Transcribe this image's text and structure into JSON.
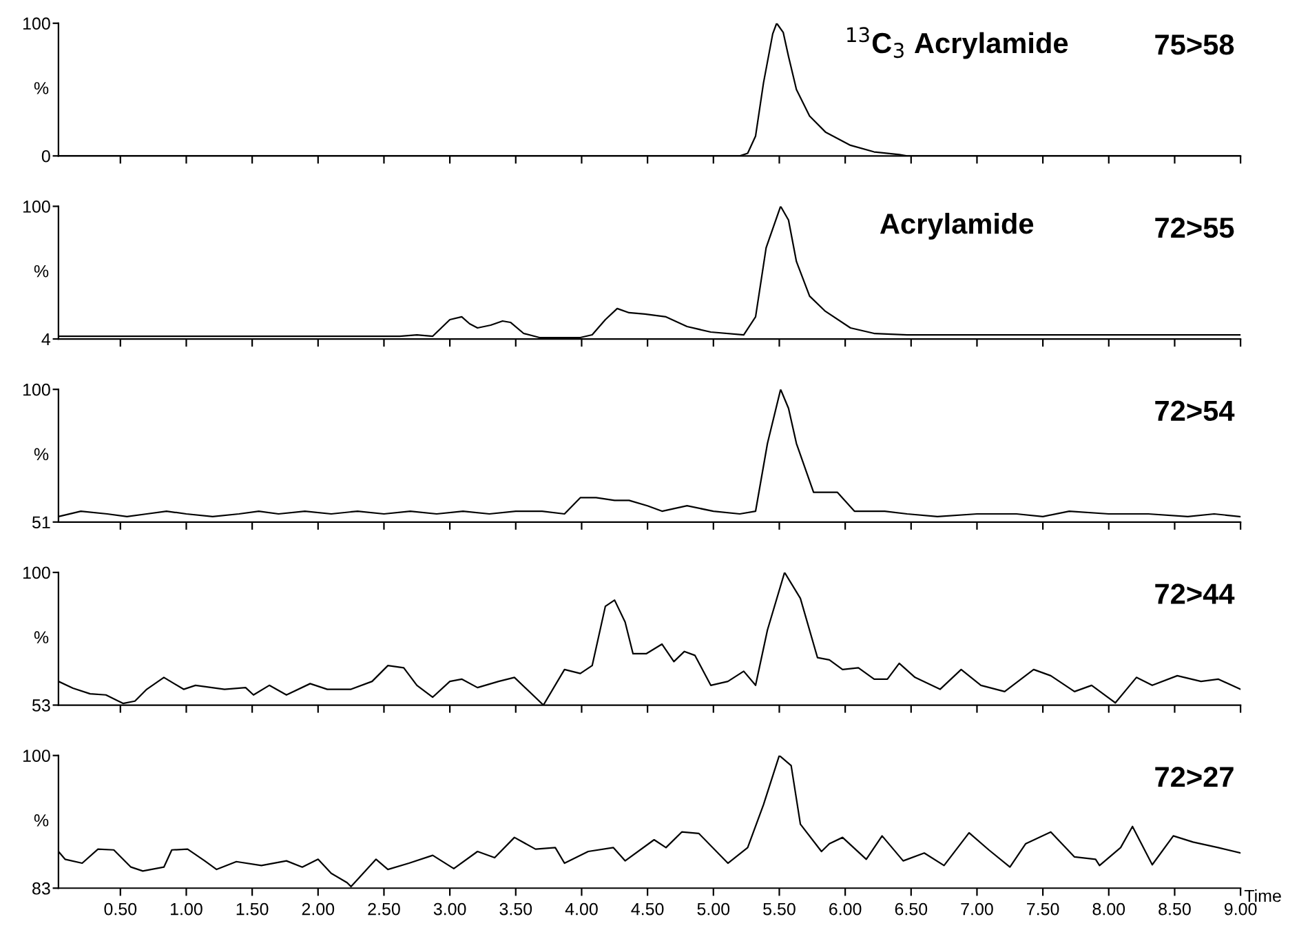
{
  "chart_data": [
    {
      "type": "line",
      "ylabel": "%",
      "annotations": [
        "$^{13}$C$_{3}$ Acrylamide",
        "75>58"
      ],
      "xlim": [
        0.03,
        9.0
      ],
      "xticks": [
        0.5,
        1.0,
        1.5,
        2.0,
        2.5,
        3.0,
        3.5,
        4.0,
        4.5,
        5.0,
        5.5,
        6.0,
        6.5,
        7.0,
        7.5,
        8.0,
        8.5,
        9.0
      ],
      "ylim": [
        0,
        100
      ],
      "yticks": [
        0,
        100
      ],
      "tick_labels": "y",
      "grid": false,
      "marker": "none",
      "line_style": "solid",
      "series": [
        {
          "color": "#000000",
          "x": [
            0.03,
            5.2,
            5.26,
            5.32,
            5.38,
            5.45,
            5.48,
            5.53,
            5.57,
            5.63,
            5.73,
            5.85,
            6.04,
            6.22,
            6.41,
            6.47,
            9.0
          ],
          "values": [
            0,
            0,
            2,
            15,
            55,
            92,
            100,
            93,
            75,
            50,
            30,
            18,
            8,
            3,
            1,
            0,
            0
          ]
        }
      ]
    },
    {
      "type": "line",
      "ylabel": "%",
      "annotations": [
        "Acrylamide",
        "72>55"
      ],
      "xlim": [
        0.03,
        9.0
      ],
      "xticks": [
        0.5,
        1.0,
        1.5,
        2.0,
        2.5,
        3.0,
        3.5,
        4.0,
        4.5,
        5.0,
        5.5,
        6.0,
        6.5,
        7.0,
        7.5,
        8.0,
        8.5,
        9.0
      ],
      "ylim": [
        4,
        100
      ],
      "yticks": [
        4,
        100
      ],
      "tick_labels": "y",
      "grid": false,
      "marker": "none",
      "line_style": "solid",
      "series": [
        {
          "color": "#000000",
          "x": [
            0.03,
            0.5,
            1.0,
            1.5,
            2.0,
            2.5,
            2.62,
            2.75,
            2.87,
            3.0,
            3.09,
            3.15,
            3.21,
            3.31,
            3.4,
            3.46,
            3.56,
            3.68,
            3.99,
            4.08,
            4.18,
            4.27,
            4.36,
            4.48,
            4.64,
            4.8,
            4.98,
            5.23,
            5.32,
            5.4,
            5.51,
            5.57,
            5.63,
            5.73,
            5.85,
            6.04,
            6.22,
            6.47,
            7.0,
            8.0,
            9.0
          ],
          "values": [
            6,
            6,
            6,
            6,
            6,
            6,
            6,
            7,
            6,
            18,
            20,
            15,
            12,
            14,
            17,
            16,
            8,
            5,
            5,
            7,
            18,
            26,
            23,
            22,
            20,
            13,
            9,
            7,
            20,
            70,
            100,
            90,
            60,
            35,
            24,
            12,
            8,
            7,
            7,
            7,
            7
          ]
        }
      ]
    },
    {
      "type": "line",
      "ylabel": "%",
      "annotations": [
        "72>54"
      ],
      "xlim": [
        0.03,
        9.0
      ],
      "xticks": [
        0.5,
        1.0,
        1.5,
        2.0,
        2.5,
        3.0,
        3.5,
        4.0,
        4.5,
        5.0,
        5.5,
        6.0,
        6.5,
        7.0,
        7.5,
        8.0,
        8.5,
        9.0
      ],
      "ylim": [
        51,
        100
      ],
      "yticks": [
        51,
        100
      ],
      "tick_labels": "y",
      "grid": false,
      "marker": "none",
      "line_style": "solid",
      "series": [
        {
          "color": "#000000",
          "x": [
            0.03,
            0.2,
            0.4,
            0.55,
            0.7,
            0.85,
            1.0,
            1.2,
            1.4,
            1.55,
            1.7,
            1.9,
            2.1,
            2.3,
            2.5,
            2.7,
            2.9,
            3.1,
            3.3,
            3.5,
            3.7,
            3.87,
            3.99,
            4.11,
            4.25,
            4.36,
            4.5,
            4.61,
            4.8,
            5.0,
            5.2,
            5.32,
            5.41,
            5.51,
            5.57,
            5.63,
            5.76,
            5.94,
            6.07,
            6.3,
            6.47,
            6.7,
            7.0,
            7.3,
            7.5,
            7.7,
            8.0,
            8.3,
            8.6,
            8.8,
            9.0
          ],
          "values": [
            53,
            55,
            54,
            53,
            54,
            55,
            54,
            53,
            54,
            55,
            54,
            55,
            54,
            55,
            54,
            55,
            54,
            55,
            54,
            55,
            55,
            54,
            60,
            60,
            59,
            59,
            57,
            55,
            57,
            55,
            54,
            55,
            80,
            100,
            93,
            80,
            62,
            62,
            55,
            55,
            54,
            53,
            54,
            54,
            53,
            55,
            54,
            54,
            53,
            54,
            53
          ]
        }
      ]
    },
    {
      "type": "line",
      "ylabel": "%",
      "annotations": [
        "72>44"
      ],
      "xlim": [
        0.03,
        9.0
      ],
      "xticks": [
        0.5,
        1.0,
        1.5,
        2.0,
        2.5,
        3.0,
        3.5,
        4.0,
        4.5,
        5.0,
        5.5,
        6.0,
        6.5,
        7.0,
        7.5,
        8.0,
        8.5,
        9.0
      ],
      "ylim": [
        53,
        100
      ],
      "yticks": [
        53,
        100
      ],
      "tick_labels": "y",
      "grid": false,
      "marker": "none",
      "line_style": "solid",
      "series": [
        {
          "color": "#000000",
          "x": [
            0.03,
            0.14,
            0.27,
            0.39,
            0.52,
            0.61,
            0.7,
            0.83,
            0.98,
            1.07,
            1.29,
            1.45,
            1.51,
            1.63,
            1.76,
            1.94,
            2.07,
            2.25,
            2.41,
            2.53,
            2.65,
            2.75,
            2.87,
            3.0,
            3.09,
            3.21,
            3.37,
            3.49,
            3.71,
            3.87,
            3.99,
            4.08,
            4.18,
            4.25,
            4.33,
            4.39,
            4.49,
            4.61,
            4.7,
            4.78,
            4.86,
            4.98,
            5.11,
            5.23,
            5.32,
            5.41,
            5.54,
            5.66,
            5.79,
            5.88,
            5.98,
            6.1,
            6.22,
            6.32,
            6.41,
            6.53,
            6.72,
            6.88,
            7.03,
            7.21,
            7.43,
            7.56,
            7.74,
            7.87,
            8.05,
            8.21,
            8.33,
            8.52,
            8.7,
            8.83,
            9.0
          ],
          "values": [
            61.4,
            59,
            57,
            56.6,
            53.6,
            54.4,
            58.6,
            62.8,
            58.6,
            60,
            58.6,
            59.2,
            56.6,
            60,
            56.6,
            60.6,
            58.6,
            58.6,
            61.4,
            67,
            66.2,
            60,
            55.8,
            61.4,
            62.2,
            59.2,
            61.4,
            62.8,
            53,
            65.6,
            64.2,
            67,
            88,
            90.2,
            82.4,
            71.2,
            71.2,
            74.6,
            68.4,
            72,
            70.6,
            60,
            61.4,
            65,
            60,
            79.6,
            100,
            90.8,
            69.8,
            69,
            65.6,
            66.2,
            62.2,
            62.2,
            67.8,
            62.8,
            58.6,
            65.6,
            60,
            57.8,
            65.6,
            63.4,
            57.8,
            60,
            53.8,
            62.8,
            60,
            63.4,
            61.4,
            62.2,
            58.6
          ]
        }
      ]
    },
    {
      "type": "line",
      "ylabel": "%",
      "xlabel": "Time",
      "annotations": [
        "72>27"
      ],
      "xlim": [
        0.03,
        9.0
      ],
      "xticks": [
        {
          "value": 0.5,
          "label": "0.50"
        },
        {
          "value": 1.0,
          "label": "1.00"
        },
        {
          "value": 1.5,
          "label": "1.50"
        },
        {
          "value": 2.0,
          "label": "2.00"
        },
        {
          "value": 2.5,
          "label": "2.50"
        },
        {
          "value": 3.0,
          "label": "3.00"
        },
        {
          "value": 3.5,
          "label": "3.50"
        },
        {
          "value": 4.0,
          "label": "4.00"
        },
        {
          "value": 4.5,
          "label": "4.50"
        },
        {
          "value": 5.0,
          "label": "5.00"
        },
        {
          "value": 5.5,
          "label": "5.50"
        },
        {
          "value": 6.0,
          "label": "6.00"
        },
        {
          "value": 6.5,
          "label": "6.50"
        },
        {
          "value": 7.0,
          "label": "7.00"
        },
        {
          "value": 7.5,
          "label": "7.50"
        },
        {
          "value": 8.0,
          "label": "8.00"
        },
        {
          "value": 8.5,
          "label": "8.50"
        },
        {
          "value": 9.0,
          "label": "9.00"
        }
      ],
      "ylim": [
        83,
        100
      ],
      "yticks": [
        83,
        100
      ],
      "grid": false,
      "marker": "none",
      "line_style": "solid",
      "series": [
        {
          "color": "#000000",
          "x": [
            0.03,
            0.08,
            0.21,
            0.33,
            0.45,
            0.58,
            0.67,
            0.83,
            0.89,
            1.01,
            1.14,
            1.23,
            1.38,
            1.57,
            1.76,
            1.88,
            2.0,
            2.1,
            2.22,
            2.25,
            2.44,
            2.53,
            2.69,
            2.87,
            3.03,
            3.21,
            3.34,
            3.49,
            3.65,
            3.8,
            3.87,
            4.05,
            4.24,
            4.33,
            4.55,
            4.64,
            4.76,
            4.89,
            5.11,
            5.26,
            5.38,
            5.5,
            5.59,
            5.66,
            5.82,
            5.88,
            5.98,
            6.16,
            6.28,
            6.44,
            6.6,
            6.75,
            6.94,
            7.09,
            7.25,
            7.37,
            7.56,
            7.74,
            7.9,
            7.93,
            8.09,
            8.18,
            8.33,
            8.49,
            8.64,
            8.83,
            9.0
          ],
          "values": [
            87.7,
            86.7,
            86.2,
            88,
            87.9,
            85.7,
            85.2,
            85.7,
            87.9,
            88,
            86.5,
            85.4,
            86.4,
            85.9,
            86.5,
            85.7,
            86.7,
            84.9,
            83.7,
            83.2,
            86.7,
            85.4,
            86.2,
            87.2,
            85.5,
            87.7,
            86.9,
            89.5,
            88,
            88.2,
            86.2,
            87.7,
            88.2,
            86.5,
            89.2,
            88.2,
            90.2,
            90,
            86.2,
            88.2,
            93.7,
            100,
            98.7,
            91.2,
            87.7,
            88.7,
            89.5,
            86.7,
            89.7,
            86.5,
            87.5,
            85.9,
            90.1,
            87.9,
            85.7,
            88.7,
            90.2,
            87,
            86.7,
            85.9,
            88.2,
            90.9,
            86,
            89.7,
            88.9,
            88.2,
            87.5
          ]
        }
      ]
    }
  ]
}
